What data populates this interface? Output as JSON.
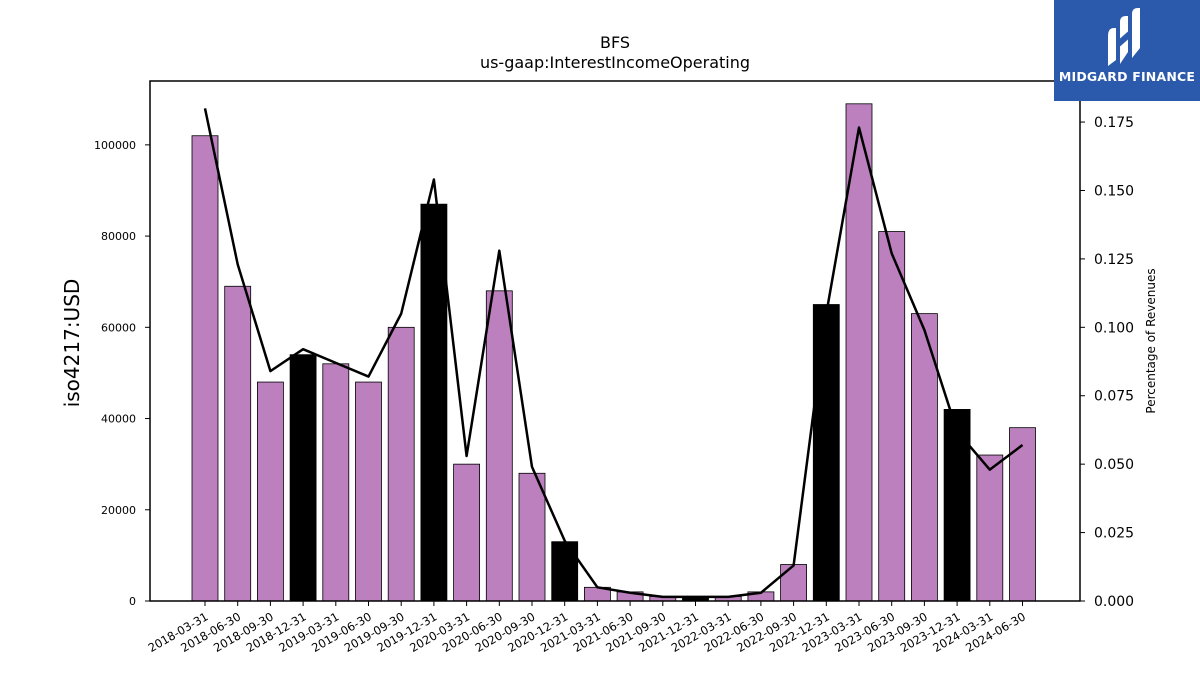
{
  "chart_data": {
    "type": "bar",
    "title": "BFS",
    "subtitle": "us-gaap:InterestIncomeOperating",
    "ylabel": "iso4217:USD",
    "y2label": "Percentage of Revenues",
    "categories": [
      "2018-03-31",
      "2018-06-30",
      "2018-09-30",
      "2018-12-31",
      "2019-03-31",
      "2019-06-30",
      "2019-09-30",
      "2019-12-31",
      "2020-03-31",
      "2020-06-30",
      "2020-09-30",
      "2020-12-31",
      "2021-03-31",
      "2021-06-30",
      "2021-09-30",
      "2021-12-31",
      "2022-03-31",
      "2022-06-30",
      "2022-09-30",
      "2022-12-31",
      "2023-03-31",
      "2023-06-30",
      "2023-09-30",
      "2023-12-31",
      "2024-03-31",
      "2024-06-30"
    ],
    "series": [
      {
        "values": [
          102000,
          69000,
          48000,
          54000,
          52000,
          48000,
          60000,
          87000,
          30000,
          68000,
          28000,
          13000,
          3000,
          2000,
          1000,
          1000,
          1000,
          2000,
          8000,
          65000,
          109000,
          81000,
          63000,
          42000,
          32000,
          38000
        ],
        "highlight": [
          false,
          false,
          false,
          true,
          false,
          false,
          false,
          true,
          false,
          false,
          false,
          true,
          false,
          false,
          false,
          true,
          false,
          false,
          false,
          true,
          false,
          false,
          false,
          true,
          false,
          false
        ],
        "color": "#bb80bd",
        "highlight_color": "#000000"
      },
      {
        "axis": "right",
        "color": "#000000",
        "values": [
          0.18,
          0.123,
          0.084,
          0.092,
          0.087,
          0.082,
          0.105,
          0.154,
          0.053,
          0.128,
          0.049,
          0.022,
          0.005,
          0.003,
          0.0015,
          0.0015,
          0.0015,
          0.003,
          0.013,
          0.105,
          0.173,
          0.127,
          0.099,
          0.062,
          0.048,
          0.057
        ]
      }
    ],
    "ylim": [
      0,
      114000
    ],
    "y2lim": [
      0,
      0.19
    ],
    "yticks": [
      0,
      20000,
      40000,
      60000,
      80000,
      100000
    ],
    "y2ticks": [
      "0.000",
      "0.025",
      "0.050",
      "0.075",
      "0.100",
      "0.125",
      "0.150",
      "0.175"
    ],
    "grid": false,
    "legend": "none"
  },
  "logo": {
    "text": "MIDGARD FINANCE",
    "background": "#2b5aad"
  }
}
